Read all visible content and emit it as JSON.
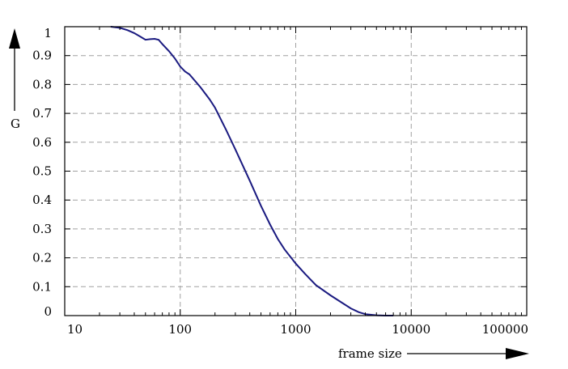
{
  "chart_data": {
    "type": "line",
    "xscale": "log",
    "xlim": [
      10,
      100000
    ],
    "ylim": [
      0,
      1
    ],
    "grid": true,
    "xlabel": "frame size",
    "ylabel": "G",
    "xticks": [
      10,
      100,
      1000,
      10000,
      100000
    ],
    "xtick_labels": [
      "10",
      "100",
      "1000",
      "10000",
      "100000"
    ],
    "yticks": [
      0,
      0.1,
      0.2,
      0.3,
      0.4,
      0.5,
      0.6,
      0.7,
      0.8,
      0.9,
      1
    ],
    "ytick_labels": [
      "0",
      "0.1",
      "0.2",
      "0.3",
      "0.4",
      "0.5",
      "0.6",
      "0.7",
      "0.8",
      "0.9",
      "1"
    ],
    "series": [
      {
        "color": "#1a1a80",
        "x": [
          25,
          30,
          35,
          40,
          45,
          50,
          55,
          60,
          65,
          70,
          80,
          90,
          100,
          110,
          120,
          150,
          180,
          200,
          250,
          300,
          400,
          500,
          600,
          700,
          800,
          1000,
          1200,
          1500,
          2000,
          2500,
          3000,
          3500,
          4000,
          5000,
          6000,
          7000
        ],
        "y": [
          1.0,
          0.996,
          0.988,
          0.978,
          0.966,
          0.955,
          0.957,
          0.958,
          0.955,
          0.94,
          0.915,
          0.89,
          0.862,
          0.845,
          0.835,
          0.79,
          0.748,
          0.72,
          0.642,
          0.575,
          0.467,
          0.38,
          0.315,
          0.265,
          0.229,
          0.18,
          0.145,
          0.105,
          0.07,
          0.045,
          0.025,
          0.012,
          0.005,
          0.001,
          0.0,
          0.0
        ]
      }
    ]
  }
}
